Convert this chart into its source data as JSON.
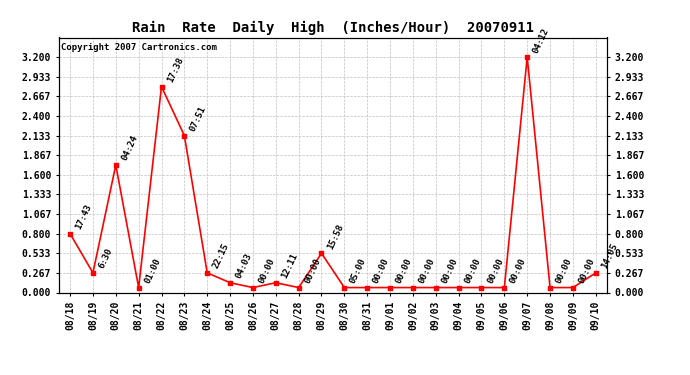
{
  "title": "Rain  Rate  Daily  High  (Inches/Hour)  20070911",
  "copyright": "Copyright 2007 Cartronics.com",
  "x_labels": [
    "08/18",
    "08/19",
    "08/20",
    "08/21",
    "08/22",
    "08/23",
    "08/24",
    "08/25",
    "08/26",
    "08/27",
    "08/28",
    "08/29",
    "08/30",
    "08/31",
    "09/01",
    "09/02",
    "09/03",
    "09/04",
    "09/05",
    "09/06",
    "09/07",
    "09/08",
    "09/09",
    "09/10"
  ],
  "y_values": [
    0.8,
    0.267,
    1.733,
    0.067,
    2.8,
    2.133,
    0.267,
    0.133,
    0.067,
    0.133,
    0.067,
    0.533,
    0.067,
    0.067,
    0.067,
    0.067,
    0.067,
    0.067,
    0.067,
    0.067,
    3.2,
    0.067,
    0.067,
    0.267
  ],
  "point_labels": [
    "17:43",
    "6:30",
    "04:24",
    "01:00",
    "17:38",
    "07:51",
    "22:15",
    "04:03",
    "00:00",
    "12:11",
    "00:00",
    "15:58",
    "05:00",
    "00:00",
    "00:00",
    "00:00",
    "00:00",
    "00:00",
    "00:00",
    "00:00",
    "04:12",
    "00:00",
    "00:00",
    "14:05"
  ],
  "ylim": [
    0.0,
    3.467
  ],
  "yticks": [
    0.0,
    0.267,
    0.533,
    0.8,
    1.067,
    1.333,
    1.6,
    1.867,
    2.133,
    2.4,
    2.667,
    2.933,
    3.2
  ],
  "line_color": "#ff0000",
  "marker_color": "#ff0000",
  "bg_color": "#ffffff",
  "grid_color": "#c0c0c0",
  "border_color": "#000000",
  "title_fontsize": 10,
  "tick_fontsize": 7,
  "annot_fontsize": 6.5
}
